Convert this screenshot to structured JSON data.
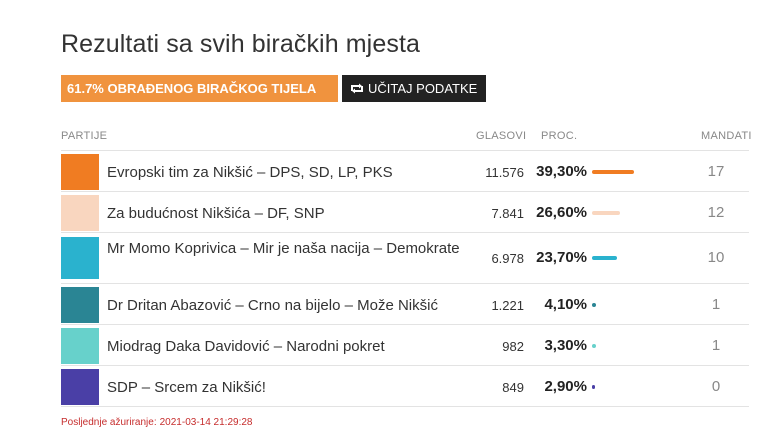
{
  "title": "Rezultati sa svih biračkih mjesta",
  "progress_badge": "61.7% OBRAĐENOG BIRAČKOG TIJELA",
  "load_button": {
    "label": "UČITAJ PODATKE",
    "icon": "refresh-icon"
  },
  "table": {
    "headers": {
      "party": "PARTIJE",
      "votes": "GLASOVI",
      "percent": "PROC.",
      "seats": "MANDATI"
    },
    "rows": [
      {
        "name": "Evropski tim za Nikšić – DPS, SD, LP, PKS",
        "votes": "11.576",
        "percent": "39,30%",
        "percent_value": 39.3,
        "seats": "17",
        "color": "#f07c22"
      },
      {
        "name": "Za budućnost Nikšića – DF, SNP",
        "votes": "7.841",
        "percent": "26,60%",
        "percent_value": 26.6,
        "seats": "12",
        "color": "#f9d6bf"
      },
      {
        "name": "Mr Momo Koprivica – Mir je naša nacija – Demokrate",
        "votes": "6.978",
        "percent": "23,70%",
        "percent_value": 23.7,
        "seats": "10",
        "color": "#2ab2ce"
      },
      {
        "name": "Dr Dritan Abazović – Crno na bijelo – Može Nikšić",
        "votes": "1.221",
        "percent": "4,10%",
        "percent_value": 4.1,
        "seats": "1",
        "color": "#2a8594"
      },
      {
        "name": "Miodrag Daka Davidović – Narodni pokret",
        "votes": "982",
        "percent": "3,30%",
        "percent_value": 3.3,
        "seats": "1",
        "color": "#67d1cb"
      },
      {
        "name": "SDP – Srcem za Nikšić!",
        "votes": "849",
        "percent": "2,90%",
        "percent_value": 2.9,
        "seats": "0",
        "color": "#4a3fa6"
      }
    ]
  },
  "last_updated_label": "Posljednje ažuriranje:",
  "last_updated_value": "2021-03-14 21:29:28"
}
